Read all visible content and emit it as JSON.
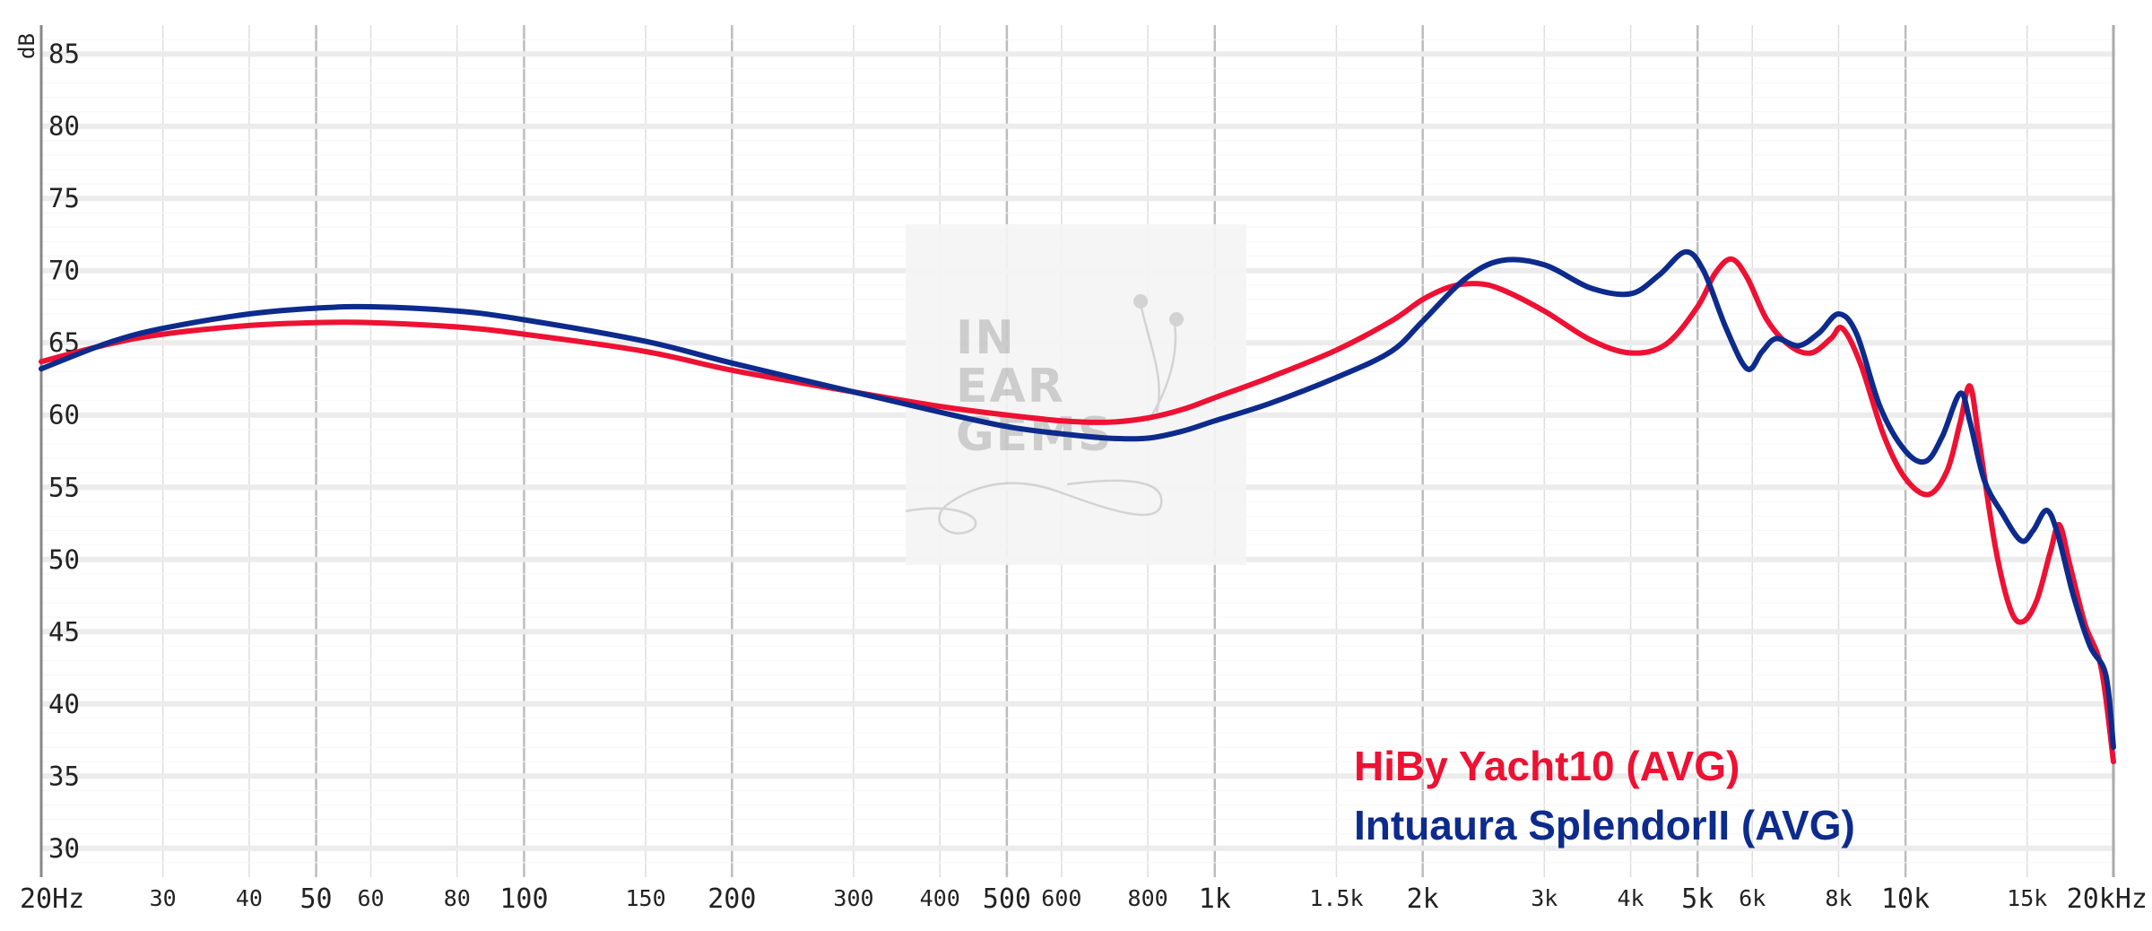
{
  "chart_data": {
    "type": "line",
    "title": "",
    "xlabel": "",
    "ylabel": "dB",
    "x_scale": "log",
    "xlim": [
      20,
      20000
    ],
    "ylim": [
      28,
      87
    ],
    "grid": true,
    "legend_position": "bottom-right",
    "x_ticks": [
      {
        "value": 20,
        "label": "20Hz",
        "major": true
      },
      {
        "value": 30,
        "label": "30",
        "major": false
      },
      {
        "value": 40,
        "label": "40",
        "major": false
      },
      {
        "value": 50,
        "label": "50",
        "major": true
      },
      {
        "value": 60,
        "label": "60",
        "major": false
      },
      {
        "value": 80,
        "label": "80",
        "major": false
      },
      {
        "value": 100,
        "label": "100",
        "major": true
      },
      {
        "value": 150,
        "label": "150",
        "major": false
      },
      {
        "value": 200,
        "label": "200",
        "major": true
      },
      {
        "value": 300,
        "label": "300",
        "major": false
      },
      {
        "value": 400,
        "label": "400",
        "major": false
      },
      {
        "value": 500,
        "label": "500",
        "major": true
      },
      {
        "value": 600,
        "label": "600",
        "major": false
      },
      {
        "value": 800,
        "label": "800",
        "major": false
      },
      {
        "value": 1000,
        "label": "1k",
        "major": true
      },
      {
        "value": 1500,
        "label": "1.5k",
        "major": false
      },
      {
        "value": 2000,
        "label": "2k",
        "major": true
      },
      {
        "value": 3000,
        "label": "3k",
        "major": false
      },
      {
        "value": 4000,
        "label": "4k",
        "major": false
      },
      {
        "value": 5000,
        "label": "5k",
        "major": true
      },
      {
        "value": 6000,
        "label": "6k",
        "major": false
      },
      {
        "value": 8000,
        "label": "8k",
        "major": false
      },
      {
        "value": 10000,
        "label": "10k",
        "major": true
      },
      {
        "value": 15000,
        "label": "15k",
        "major": false
      },
      {
        "value": 20000,
        "label": "20kHz",
        "major": true
      }
    ],
    "y_ticks": [
      30,
      35,
      40,
      45,
      50,
      55,
      60,
      65,
      70,
      75,
      80,
      85
    ],
    "series": [
      {
        "name": "HiBy Yacht10 (AVG)",
        "color": "#ee1133",
        "points": [
          [
            20,
            63.7
          ],
          [
            25,
            64.9
          ],
          [
            30,
            65.6
          ],
          [
            40,
            66.2
          ],
          [
            50,
            66.4
          ],
          [
            60,
            66.4
          ],
          [
            80,
            66.1
          ],
          [
            100,
            65.6
          ],
          [
            150,
            64.4
          ],
          [
            200,
            63.1
          ],
          [
            300,
            61.6
          ],
          [
            400,
            60.6
          ],
          [
            500,
            60.0
          ],
          [
            600,
            59.6
          ],
          [
            700,
            59.5
          ],
          [
            800,
            59.8
          ],
          [
            900,
            60.4
          ],
          [
            1000,
            61.2
          ],
          [
            1200,
            62.6
          ],
          [
            1500,
            64.5
          ],
          [
            1800,
            66.5
          ],
          [
            2000,
            68.0
          ],
          [
            2200,
            68.9
          ],
          [
            2400,
            69.1
          ],
          [
            2600,
            68.7
          ],
          [
            3000,
            67.2
          ],
          [
            3500,
            65.2
          ],
          [
            4000,
            64.3
          ],
          [
            4500,
            64.9
          ],
          [
            5000,
            67.5
          ],
          [
            5300,
            69.8
          ],
          [
            5600,
            70.8
          ],
          [
            5900,
            69.5
          ],
          [
            6300,
            66.6
          ],
          [
            6800,
            64.8
          ],
          [
            7300,
            64.3
          ],
          [
            7800,
            65.3
          ],
          [
            8100,
            66.0
          ],
          [
            8600,
            63.6
          ],
          [
            9300,
            58.6
          ],
          [
            10000,
            55.6
          ],
          [
            10800,
            54.5
          ],
          [
            11500,
            56.2
          ],
          [
            12000,
            59.5
          ],
          [
            12400,
            62.0
          ],
          [
            12800,
            58.0
          ],
          [
            13500,
            50.8
          ],
          [
            14200,
            46.5
          ],
          [
            14800,
            45.7
          ],
          [
            15500,
            47.2
          ],
          [
            16200,
            50.5
          ],
          [
            16700,
            52.4
          ],
          [
            17300,
            49.6
          ],
          [
            18200,
            45.5
          ],
          [
            19200,
            42.5
          ],
          [
            20000,
            36.0
          ]
        ]
      },
      {
        "name": "Intuaura SplendorII (AVG)",
        "color": "#0d2b8c",
        "points": [
          [
            20,
            63.2
          ],
          [
            25,
            65.0
          ],
          [
            30,
            66.0
          ],
          [
            40,
            67.0
          ],
          [
            50,
            67.4
          ],
          [
            60,
            67.5
          ],
          [
            80,
            67.2
          ],
          [
            100,
            66.6
          ],
          [
            150,
            65.1
          ],
          [
            200,
            63.6
          ],
          [
            300,
            61.6
          ],
          [
            400,
            60.2
          ],
          [
            500,
            59.2
          ],
          [
            600,
            58.7
          ],
          [
            700,
            58.4
          ],
          [
            800,
            58.4
          ],
          [
            900,
            58.9
          ],
          [
            1000,
            59.6
          ],
          [
            1200,
            60.8
          ],
          [
            1500,
            62.6
          ],
          [
            1800,
            64.4
          ],
          [
            2000,
            66.5
          ],
          [
            2300,
            69.4
          ],
          [
            2600,
            70.7
          ],
          [
            3000,
            70.4
          ],
          [
            3500,
            68.8
          ],
          [
            4000,
            68.4
          ],
          [
            4400,
            69.7
          ],
          [
            4800,
            71.3
          ],
          [
            5100,
            70.0
          ],
          [
            5500,
            66.0
          ],
          [
            5900,
            63.2
          ],
          [
            6200,
            64.4
          ],
          [
            6500,
            65.3
          ],
          [
            7000,
            64.8
          ],
          [
            7500,
            65.7
          ],
          [
            8000,
            67.0
          ],
          [
            8500,
            65.6
          ],
          [
            9200,
            60.5
          ],
          [
            10000,
            57.5
          ],
          [
            10700,
            56.8
          ],
          [
            11300,
            58.5
          ],
          [
            12000,
            61.5
          ],
          [
            12400,
            59.5
          ],
          [
            13000,
            55.5
          ],
          [
            13800,
            53.2
          ],
          [
            14700,
            51.3
          ],
          [
            15300,
            52.0
          ],
          [
            16000,
            53.4
          ],
          [
            16600,
            51.8
          ],
          [
            17500,
            47.5
          ],
          [
            18500,
            44.0
          ],
          [
            19500,
            42.0
          ],
          [
            20000,
            37.0
          ]
        ]
      }
    ],
    "watermark": {
      "line1": "IN",
      "line2": "EAR",
      "line3": "GEMS"
    }
  }
}
